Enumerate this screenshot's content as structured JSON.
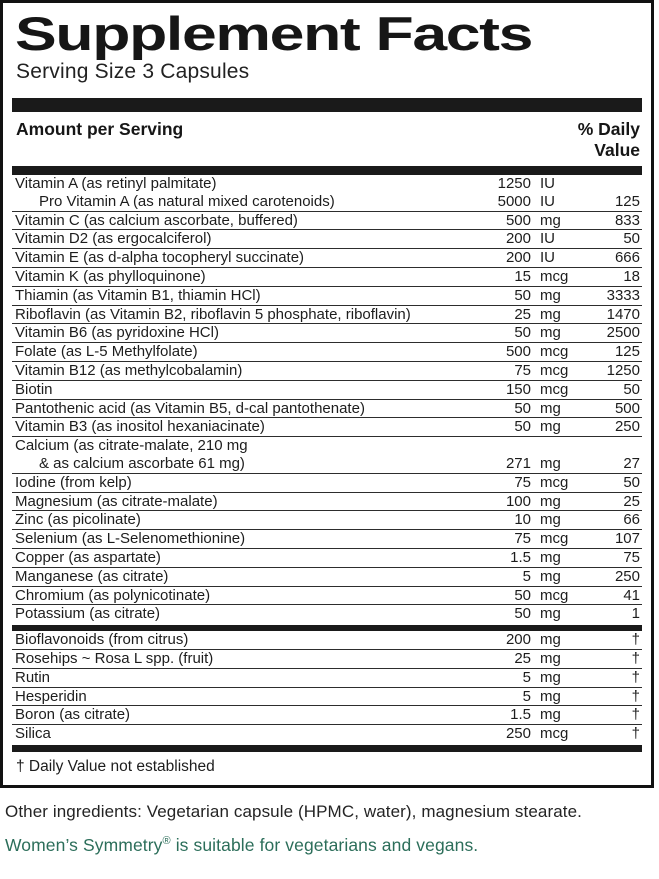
{
  "title": "Supplement Facts",
  "serving_size": "Serving Size 3 Capsules",
  "header": {
    "amount_label": "Amount per Serving",
    "dv_label_line1": "% Daily",
    "dv_label_line2": "Value"
  },
  "sections": [
    {
      "rows": [
        {
          "name": "Vitamin A (as retinyl palmitate)",
          "amount": "1250",
          "unit": "IU",
          "dv": "",
          "underline": false
        },
        {
          "name": "Pro Vitamin A (as natural mixed carotenoids)",
          "amount": "5000",
          "unit": "IU",
          "dv": "125",
          "indent": true
        },
        {
          "name": "Vitamin C (as calcium ascorbate, buffered)",
          "amount": "500",
          "unit": "mg",
          "dv": "833"
        },
        {
          "name": "Vitamin D2 (as ergocalciferol)",
          "amount": "200",
          "unit": "IU",
          "dv": "50"
        },
        {
          "name": "Vitamin E (as d-alpha tocopheryl succinate)",
          "amount": "200",
          "unit": "IU",
          "dv": "666"
        },
        {
          "name": "Vitamin K (as phylloquinone)",
          "amount": "15",
          "unit": "mcg",
          "dv": "18"
        },
        {
          "name": "Thiamin (as Vitamin B1, thiamin HCl)",
          "amount": "50",
          "unit": "mg",
          "dv": "3333"
        },
        {
          "name": "Riboflavin (as Vitamin B2, riboflavin 5 phosphate, riboflavin)",
          "amount": "25",
          "unit": "mg",
          "dv": "1470"
        },
        {
          "name": "Vitamin B6 (as pyridoxine HCl)",
          "amount": "50",
          "unit": "mg",
          "dv": "2500"
        },
        {
          "name": "Folate (as L-5 Methylfolate)",
          "amount": "500",
          "unit": "mcg",
          "dv": "125"
        },
        {
          "name": "Vitamin B12 (as methylcobalamin)",
          "amount": "75",
          "unit": "mcg",
          "dv": "1250"
        },
        {
          "name": "Biotin",
          "amount": "150",
          "unit": "mcg",
          "dv": "50"
        },
        {
          "name": "Pantothenic acid (as Vitamin B5, d-cal pantothenate)",
          "amount": "50",
          "unit": "mg",
          "dv": "500"
        },
        {
          "name": "Vitamin B3 (as inositol hexaniacinate)",
          "amount": "50",
          "unit": "mg",
          "dv": "250"
        },
        {
          "name": "Calcium (as citrate-malate, 210 mg",
          "amount": "",
          "unit": "",
          "dv": "",
          "underline": false
        },
        {
          "name": "& as calcium ascorbate 61 mg)",
          "amount": "271",
          "unit": "mg",
          "dv": "27",
          "indent": true
        },
        {
          "name": "Iodine (from kelp)",
          "amount": "75",
          "unit": "mcg",
          "dv": "50"
        },
        {
          "name": "Magnesium (as citrate-malate)",
          "amount": "100",
          "unit": "mg",
          "dv": "25"
        },
        {
          "name": "Zinc (as picolinate)",
          "amount": "10",
          "unit": "mg",
          "dv": "66"
        },
        {
          "name": "Selenium (as L-Selenomethionine)",
          "amount": "75",
          "unit": "mcg",
          "dv": "107"
        },
        {
          "name": "Copper (as aspartate)",
          "amount": "1.5",
          "unit": "mg",
          "dv": "75"
        },
        {
          "name": "Manganese (as citrate)",
          "amount": "5",
          "unit": "mg",
          "dv": "250"
        },
        {
          "name": "Chromium (as polynicotinate)",
          "amount": "50",
          "unit": "mcg",
          "dv": "41"
        },
        {
          "name": "Potassium (as citrate)",
          "amount": "50",
          "unit": "mg",
          "dv": "1",
          "underline": false
        }
      ]
    },
    {
      "rows": [
        {
          "name": "Bioflavonoids (from citrus)",
          "amount": "200",
          "unit": "mg",
          "dv": "†"
        },
        {
          "name": "Rosehips ~ Rosa L spp. (fruit)",
          "amount": "25",
          "unit": "mg",
          "dv": "†"
        },
        {
          "name": "Rutin",
          "amount": "5",
          "unit": "mg",
          "dv": "†"
        },
        {
          "name": "Hesperidin",
          "amount": "5",
          "unit": "mg",
          "dv": "†"
        },
        {
          "name": "Boron (as citrate)",
          "amount": "1.5",
          "unit": "mg",
          "dv": "†"
        },
        {
          "name": "Silica",
          "amount": "250",
          "unit": "mcg",
          "dv": "†",
          "underline": false
        }
      ]
    }
  ],
  "footnote": "† Daily Value not established",
  "other_ingredients": "Other ingredients: Vegetarian capsule (HPMC, water), magnesium stearate.",
  "vegan_note": {
    "brand": "Women’s Symmetry",
    "reg_mark": "®",
    "rest": " is suitable for vegetarians and vegans."
  },
  "colors": {
    "green_text": "#2c6e5a",
    "bar": "#1a1a1a"
  }
}
